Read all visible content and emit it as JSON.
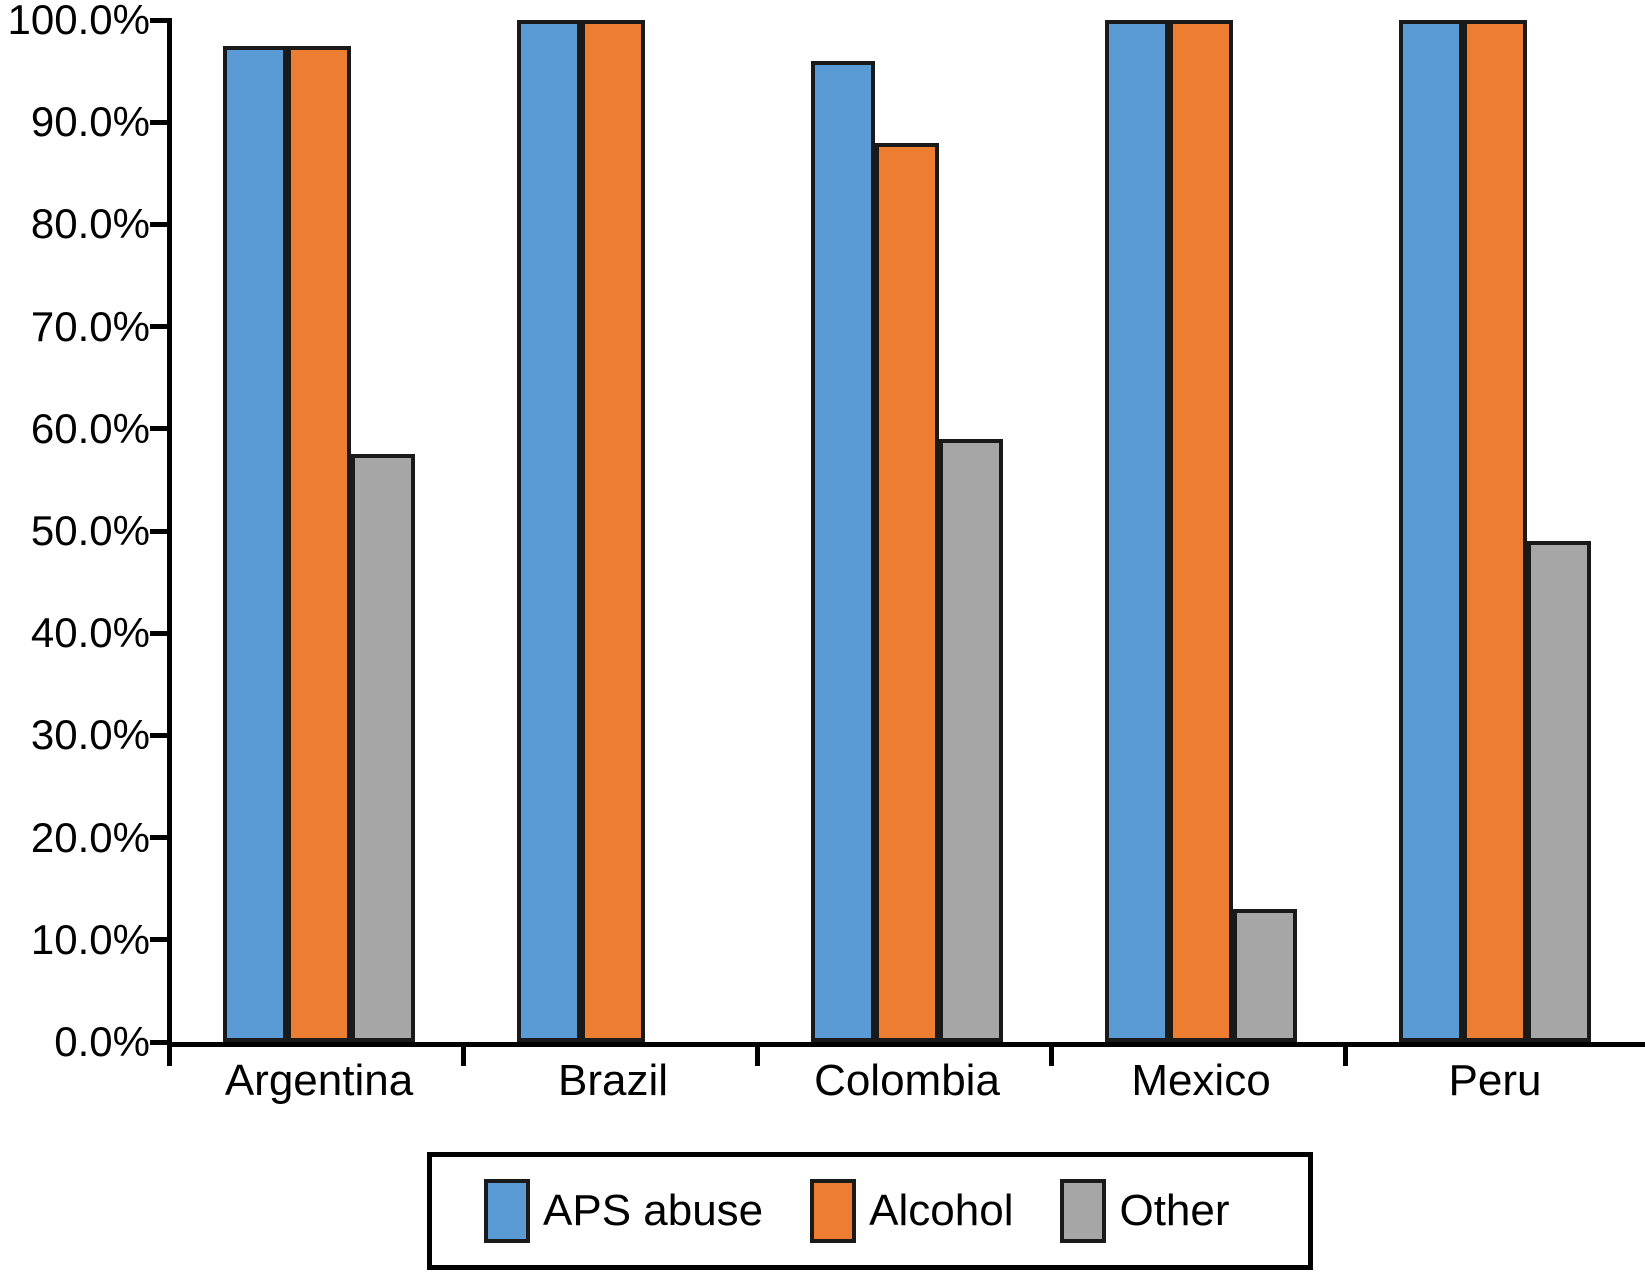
{
  "chart_data": {
    "type": "bar",
    "title": "",
    "xlabel": "",
    "ylabel": "",
    "categories": [
      "Argentina",
      "Brazil",
      "Colombia",
      "Mexico",
      "Peru"
    ],
    "series": [
      {
        "name": "APS abuse",
        "color": "#5B9BD5",
        "values": [
          97.5,
          100,
          96,
          100,
          100
        ]
      },
      {
        "name": "Alcohol",
        "color": "#ED7D31",
        "values": [
          97.5,
          100,
          88,
          100,
          100
        ]
      },
      {
        "name": "Other",
        "color": "#A6A6A6",
        "values": [
          57.5,
          null,
          59,
          13,
          49
        ]
      }
    ],
    "ylim": [
      0,
      100
    ],
    "ytick_step": 10,
    "ytick_labels": [
      "0.0%",
      "10.0%",
      "20.0%",
      "30.0%",
      "40.0%",
      "50.0%",
      "60.0%",
      "70.0%",
      "80.0%",
      "90.0%",
      "100.0%"
    ],
    "grid": false,
    "legend_position": "bottom",
    "colors": {
      "axis": "#000000",
      "bar_border": "#1a1a1a",
      "text": "#000000"
    }
  }
}
